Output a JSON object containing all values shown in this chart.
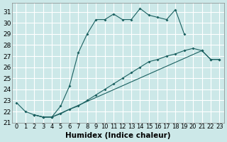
{
  "xlabel": "Humidex (Indice chaleur)",
  "background_color": "#cce8e8",
  "grid_color": "#ffffff",
  "line_color": "#1a6060",
  "xlim": [
    -0.5,
    23.5
  ],
  "ylim": [
    21.0,
    31.8
  ],
  "yticks": [
    21,
    22,
    23,
    24,
    25,
    26,
    27,
    28,
    29,
    30,
    31
  ],
  "xticks": [
    0,
    1,
    2,
    3,
    4,
    5,
    6,
    7,
    8,
    9,
    10,
    11,
    12,
    13,
    14,
    15,
    16,
    17,
    18,
    19,
    20,
    21,
    22,
    23
  ],
  "line1_x": [
    0,
    1,
    2,
    3,
    4,
    5,
    6,
    7,
    8,
    9,
    10,
    11,
    12,
    13,
    14,
    15,
    16,
    17,
    18,
    19
  ],
  "line1_y": [
    22.8,
    22.0,
    21.7,
    21.5,
    21.5,
    22.5,
    24.3,
    27.3,
    29.0,
    30.3,
    30.3,
    30.8,
    30.3,
    30.3,
    31.3,
    30.7,
    30.5,
    30.3,
    31.2,
    29.0
  ],
  "line2_x": [
    2,
    3,
    4,
    5,
    6,
    7,
    8,
    9,
    10,
    11,
    12,
    13,
    14,
    15,
    16,
    17,
    18,
    19,
    20,
    21,
    22,
    23
  ],
  "line2_y": [
    21.7,
    21.5,
    21.5,
    21.8,
    22.2,
    22.5,
    23.0,
    23.5,
    24.0,
    24.5,
    25.0,
    25.5,
    26.0,
    26.5,
    26.7,
    27.0,
    27.2,
    27.5,
    27.7,
    27.5,
    26.7,
    26.7
  ],
  "line3_x": [
    2,
    3,
    4,
    21,
    22,
    23
  ],
  "line3_y": [
    21.7,
    21.5,
    21.5,
    27.5,
    26.7,
    26.7
  ],
  "font_size": 6.5
}
